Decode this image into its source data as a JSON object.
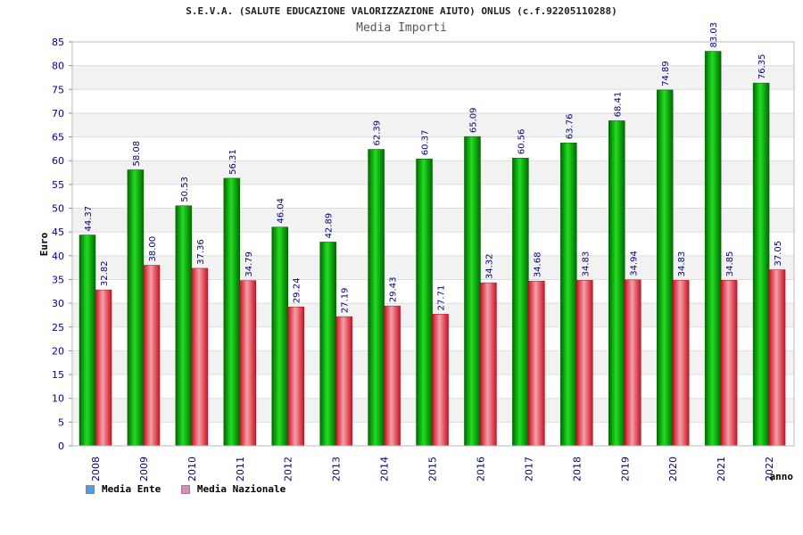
{
  "chart_data": {
    "type": "bar",
    "title": "S.E.V.A. (SALUTE EDUCAZIONE VALORIZZAZIONE AIUTO) ONLUS (c.f.92205110288)",
    "subtitle": "Media Importi",
    "xlabel": "anno",
    "ylabel": "Euro",
    "ylim": [
      0,
      85
    ],
    "yticks": [
      0,
      5,
      10,
      15,
      20,
      25,
      30,
      35,
      40,
      45,
      50,
      55,
      60,
      65,
      70,
      75,
      80,
      85
    ],
    "categories": [
      "2008",
      "2009",
      "2010",
      "2011",
      "2012",
      "2013",
      "2014",
      "2015",
      "2016",
      "2017",
      "2018",
      "2019",
      "2020",
      "2021",
      "2022"
    ],
    "series": [
      {
        "name": "Media Ente",
        "color": "#00a000",
        "legend_color": "#5599ee",
        "values": [
          44.37,
          58.08,
          50.53,
          56.31,
          46.04,
          42.89,
          62.39,
          60.37,
          65.09,
          60.56,
          63.76,
          68.41,
          74.89,
          83.03,
          76.35
        ],
        "labels": [
          "44.37",
          "58.08",
          "50.53",
          "56.31",
          "46.04",
          "42.89",
          "62.39",
          "60.37",
          "65.09",
          "60.56",
          "63.76",
          "68.41",
          "74.89",
          "83.03",
          "76.35"
        ]
      },
      {
        "name": "Media Nazionale",
        "color": "#dd2233",
        "legend_color": "#dd88bb",
        "values": [
          32.82,
          38.0,
          37.36,
          34.79,
          29.24,
          27.19,
          29.43,
          27.71,
          34.32,
          34.68,
          34.83,
          34.94,
          34.83,
          34.85,
          37.05
        ],
        "labels": [
          "32.82",
          "38.00",
          "37.36",
          "34.79",
          "29.24",
          "27.19",
          "29.43",
          "27.71",
          "34.32",
          "34.68",
          "34.83",
          "34.94",
          "34.83",
          "34.85",
          "37.05"
        ]
      }
    ],
    "grid": true,
    "legend_position": "bottom-left"
  }
}
